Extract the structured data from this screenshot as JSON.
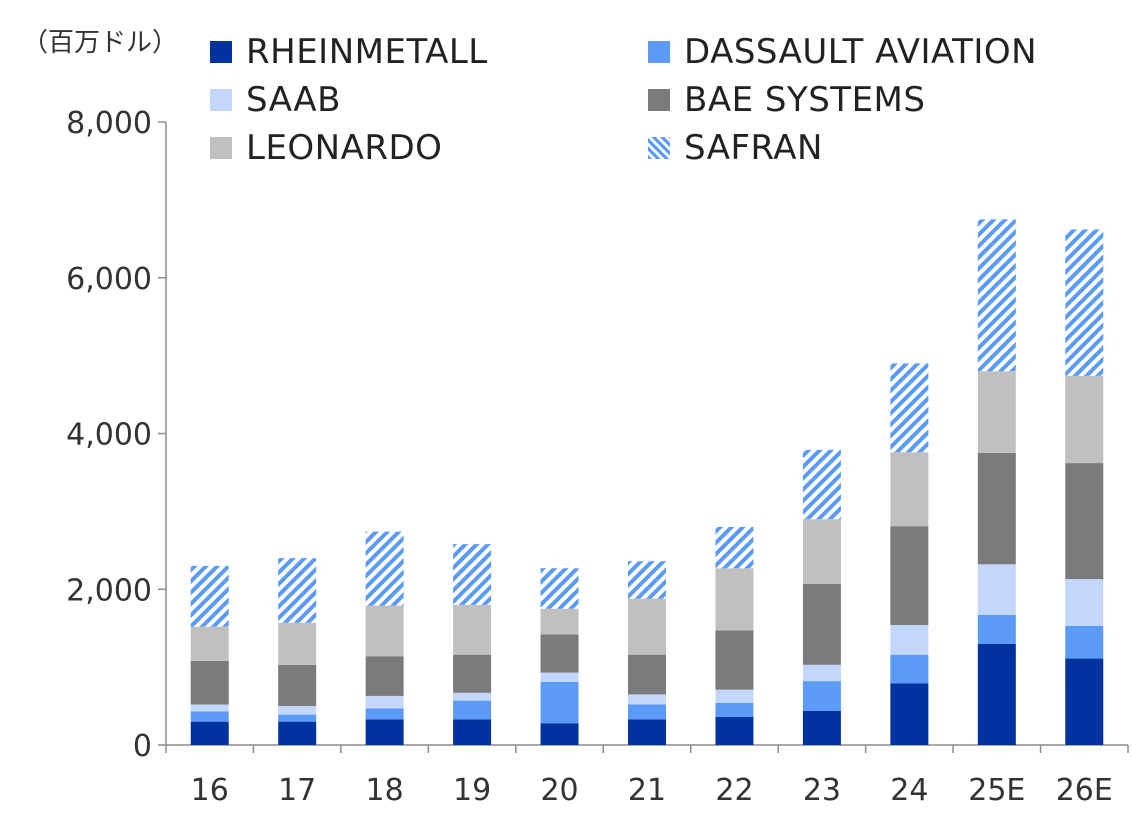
{
  "chart_data": {
    "type": "bar",
    "stacked": true,
    "unit_label": "（百万ドル）",
    "categories": [
      "16",
      "17",
      "18",
      "19",
      "20",
      "21",
      "22",
      "23",
      "24",
      "25E",
      "26E"
    ],
    "series": [
      {
        "name": "RHEINMETALL",
        "color": "#0033a0",
        "pattern": "solid",
        "values": [
          300,
          300,
          330,
          330,
          280,
          330,
          360,
          440,
          790,
          1300,
          1110
        ]
      },
      {
        "name": "DASSAULT AVIATION",
        "color": "#5b9bf5",
        "pattern": "solid",
        "values": [
          130,
          90,
          140,
          240,
          530,
          190,
          180,
          380,
          370,
          370,
          420
        ]
      },
      {
        "name": "SAAB",
        "color": "#c3d7fc",
        "pattern": "solid",
        "values": [
          90,
          110,
          160,
          100,
          120,
          130,
          170,
          210,
          380,
          650,
          600
        ]
      },
      {
        "name": "BAE SYSTEMS",
        "color": "#7b7b7b",
        "pattern": "solid",
        "values": [
          560,
          530,
          510,
          490,
          490,
          510,
          760,
          1040,
          1270,
          1430,
          1490
        ]
      },
      {
        "name": "LEONARDO",
        "color": "#c0c0c0",
        "pattern": "solid",
        "values": [
          440,
          540,
          650,
          640,
          330,
          720,
          800,
          830,
          950,
          1050,
          1120
        ]
      },
      {
        "name": "SAFRAN",
        "color": "#5b9bf5",
        "pattern": "hatch",
        "values": [
          780,
          830,
          950,
          780,
          520,
          480,
          530,
          890,
          1140,
          1950,
          1880
        ]
      }
    ],
    "y_ticks": [
      "0",
      "2,000",
      "4,000",
      "6,000",
      "8,000"
    ],
    "ylim": [
      0,
      8000
    ],
    "grid": false,
    "legend_position": "top"
  }
}
